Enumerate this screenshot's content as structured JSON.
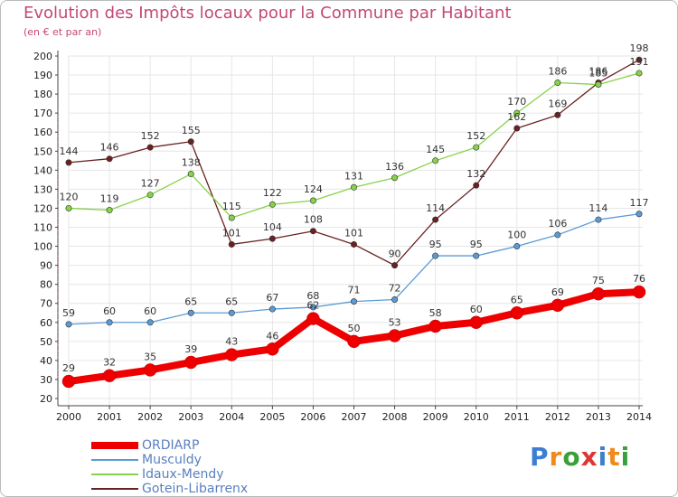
{
  "title": "Evolution des Impôts locaux pour la Commune par Habitant",
  "subtitle": "(en € et par an)",
  "brand": {
    "letters": [
      "P",
      "r",
      "o",
      "x",
      "i",
      "t",
      "i"
    ],
    "colors": [
      "#3b7fd1",
      "#f08a1c",
      "#3aa13a",
      "#e03535",
      "#3b7fd1",
      "#f08a1c",
      "#3aa13a"
    ]
  },
  "chart_data": {
    "type": "line",
    "title": "Evolution des Impôts locaux pour la Commune par Habitant",
    "ylabel": "(en € et par an)",
    "ylim": [
      20,
      200
    ],
    "yticks": [
      20,
      30,
      40,
      50,
      60,
      70,
      80,
      90,
      100,
      110,
      120,
      130,
      140,
      150,
      160,
      170,
      180,
      190,
      200
    ],
    "grid": true,
    "legend_position": "bottom-left",
    "x": [
      "2000",
      "2001",
      "2002",
      "2003",
      "2004",
      "2005",
      "2006",
      "2007",
      "2008",
      "2009",
      "2010",
      "2011",
      "2012",
      "2013",
      "2014"
    ],
    "series": [
      {
        "name": "Gotein-Libarrenx",
        "color": "#6b2121",
        "values": [
          144,
          146,
          152,
          155,
          101,
          104,
          108,
          101,
          90,
          114,
          132,
          162,
          169,
          186,
          198
        ]
      },
      {
        "name": "Idaux-Mendy",
        "color": "#88d14a",
        "values": [
          120,
          119,
          127,
          138,
          115,
          122,
          124,
          131,
          136,
          145,
          152,
          170,
          186,
          185,
          191
        ]
      },
      {
        "name": "Musculdy",
        "color": "#5b9bd5",
        "values": [
          59,
          60,
          60,
          65,
          65,
          67,
          68,
          71,
          72,
          95,
          95,
          100,
          106,
          114,
          117
        ]
      },
      {
        "name": "ORDIARP",
        "color": "#ee0000",
        "values": [
          29,
          32,
          35,
          39,
          43,
          46,
          62,
          50,
          53,
          58,
          60,
          65,
          69,
          75,
          76
        ]
      }
    ],
    "legend": [
      "ORDIARP",
      "Musculdy",
      "Idaux-Mendy",
      "Gotein-Libarrenx"
    ]
  }
}
